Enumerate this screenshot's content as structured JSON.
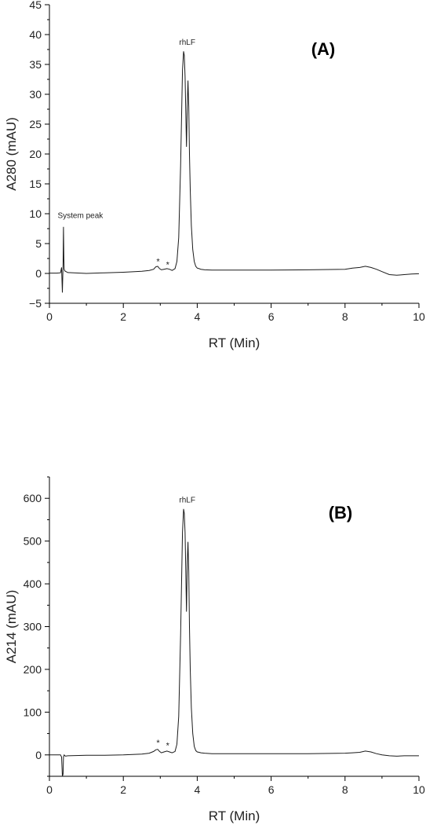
{
  "chart_data": [
    {
      "type": "line",
      "panel_label": "(A)",
      "xlabel": "RT (Min)",
      "ylabel": "A280 (mAU)",
      "xlim": [
        0,
        10
      ],
      "ylim": [
        -5,
        45
      ],
      "xticks": [
        "0",
        "2",
        "4",
        "6",
        "8",
        "10"
      ],
      "yticks": [
        "−5",
        "0",
        "5",
        "10",
        "15",
        "20",
        "25",
        "30",
        "35",
        "40",
        "45"
      ],
      "xtick_values": [
        0,
        2,
        4,
        6,
        8,
        10
      ],
      "ytick_values": [
        -5,
        0,
        5,
        10,
        15,
        20,
        25,
        30,
        35,
        40,
        45
      ],
      "grid": false,
      "annotations": [
        {
          "text": "System peak",
          "x": 0.35,
          "y": 9.3
        },
        {
          "text": "rhLF",
          "x": 3.73,
          "y": 38.3
        },
        {
          "text": "*",
          "x": 2.94,
          "y": 1.5
        },
        {
          "text": "*",
          "x": 3.2,
          "y": 1.0
        }
      ],
      "series": [
        {
          "x": [
            0,
            0.1,
            0.2,
            0.3,
            0.33,
            0.35,
            0.37,
            0.38,
            0.39,
            0.4,
            0.42,
            0.45,
            0.5,
            1.0,
            1.5,
            2.0,
            2.5,
            2.7,
            2.82,
            2.88,
            2.93,
            2.98,
            3.03,
            3.1,
            3.18,
            3.25,
            3.32,
            3.4,
            3.45,
            3.5,
            3.55,
            3.6,
            3.63,
            3.65,
            3.67,
            3.69,
            3.71,
            3.73,
            3.75,
            3.77,
            3.79,
            3.81,
            3.84,
            3.88,
            3.92,
            3.96,
            4.0,
            4.05,
            4.1,
            4.2,
            4.4,
            5.0,
            6.0,
            7.0,
            8.0,
            8.2,
            8.4,
            8.55,
            8.7,
            8.85,
            9.0,
            9.2,
            9.4,
            9.6,
            9.8,
            10.0
          ],
          "y": [
            0.05,
            0.05,
            0.05,
            0.1,
            1.0,
            -3.2,
            1.5,
            7.8,
            2.5,
            0.7,
            0.4,
            0.3,
            0.15,
            0.0,
            0.1,
            0.2,
            0.35,
            0.5,
            0.7,
            1.1,
            1.2,
            0.8,
            0.6,
            0.7,
            0.8,
            0.7,
            0.5,
            0.8,
            2.0,
            6.0,
            18.0,
            34.0,
            37.2,
            36.5,
            33.0,
            27.0,
            21.2,
            28.0,
            32.3,
            28.0,
            20.0,
            14.0,
            8.0,
            4.0,
            2.0,
            1.2,
            0.9,
            0.8,
            0.7,
            0.6,
            0.55,
            0.55,
            0.55,
            0.6,
            0.7,
            0.9,
            1.0,
            1.2,
            1.0,
            0.7,
            0.3,
            -0.2,
            -0.3,
            -0.2,
            -0.1,
            -0.05
          ]
        }
      ]
    },
    {
      "type": "line",
      "panel_label": "(B)",
      "xlabel": "RT (Min)",
      "ylabel": "A214 (mAU)",
      "xlim": [
        0,
        10
      ],
      "ylim": [
        -50,
        650
      ],
      "xticks": [
        "0",
        "2",
        "4",
        "6",
        "8",
        "10"
      ],
      "yticks": [
        "0",
        "100",
        "200",
        "300",
        "400",
        "500",
        "600"
      ],
      "xtick_values": [
        0,
        2,
        4,
        6,
        8,
        10
      ],
      "ytick_values": [
        0,
        100,
        200,
        300,
        400,
        500,
        600
      ],
      "grid": false,
      "annotations": [
        {
          "text": "rhLF",
          "x": 3.73,
          "y": 590
        },
        {
          "text": "*",
          "x": 2.94,
          "y": 22
        },
        {
          "text": "*",
          "x": 3.2,
          "y": 15
        }
      ],
      "series": [
        {
          "x": [
            0,
            0.1,
            0.2,
            0.3,
            0.33,
            0.35,
            0.37,
            0.38,
            0.4,
            0.43,
            0.5,
            1.0,
            1.5,
            2.0,
            2.5,
            2.7,
            2.82,
            2.88,
            2.93,
            2.98,
            3.03,
            3.1,
            3.18,
            3.25,
            3.32,
            3.4,
            3.45,
            3.5,
            3.55,
            3.6,
            3.63,
            3.65,
            3.67,
            3.69,
            3.71,
            3.73,
            3.75,
            3.77,
            3.79,
            3.81,
            3.84,
            3.88,
            3.92,
            3.96,
            4.0,
            4.05,
            4.1,
            4.2,
            4.4,
            5.0,
            6.0,
            7.0,
            8.0,
            8.2,
            8.4,
            8.55,
            8.7,
            8.85,
            9.0,
            9.2,
            9.4,
            9.6,
            9.8,
            10.0
          ],
          "y": [
            0,
            0,
            0,
            0,
            -5,
            -50,
            -45,
            -5,
            0,
            -3,
            -2,
            -1,
            -1,
            0,
            2,
            4,
            8,
            12,
            13,
            8,
            5,
            7,
            9,
            7,
            5,
            8,
            25,
            90,
            280,
            520,
            575,
            565,
            520,
            430,
            335,
            450,
            498,
            430,
            300,
            200,
            110,
            50,
            20,
            10,
            7,
            6,
            5,
            4,
            3,
            3,
            3,
            3,
            4,
            5,
            6,
            9,
            7,
            3,
            0,
            -2,
            -3,
            -2,
            -2,
            -2
          ]
        }
      ]
    }
  ]
}
